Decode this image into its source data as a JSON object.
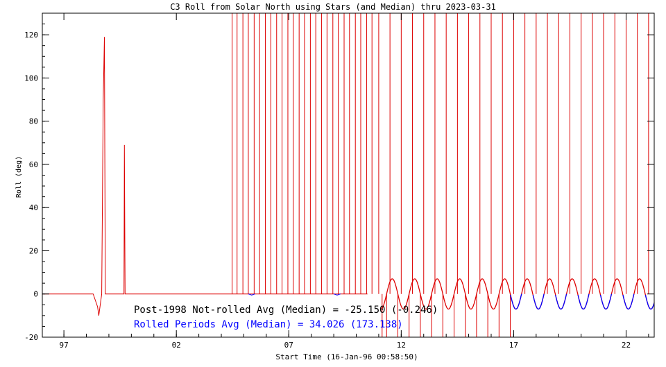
{
  "chart_data": {
    "type": "line",
    "title": "C3 Roll from Solar North using Stars (and Median) thru 2023-03-31",
    "xlabel": "Start Time (16-Jan-96 00:58:50)",
    "ylabel": "Roll (deg)",
    "xlim": [
      1996.04,
      2023.25
    ],
    "ylim": [
      -20,
      130
    ],
    "xticks": [
      {
        "value": 1997,
        "label": "97"
      },
      {
        "value": 2002,
        "label": "02"
      },
      {
        "value": 2007,
        "label": "07"
      },
      {
        "value": 2012,
        "label": "12"
      },
      {
        "value": 2017,
        "label": "17"
      },
      {
        "value": 2022,
        "label": "22"
      }
    ],
    "yticks": [
      -20,
      0,
      20,
      40,
      60,
      80,
      100,
      120
    ],
    "annotations": [
      {
        "text": "Post-1998 Not-rolled Avg (Median) = -25.150 (-0.246)",
        "color": "#000000"
      },
      {
        "text": "Rolled Periods Avg (Median) =  34.026 (173.138)",
        "color": "#0000ff"
      }
    ],
    "series": [
      {
        "color": "#dd0000",
        "segments": [
          {
            "x": [
              1996.04,
              1998.3,
              1998.5,
              1998.55,
              1998.68,
              1998.75,
              1998.8,
              1998.84,
              1999.0,
              1999.67,
              1999.69,
              1999.72,
              1999.75,
              2010.5
            ],
            "y": [
              0,
              0,
              -6,
              -10,
              0,
              90,
              119,
              0,
              0,
              0,
              69,
              0,
              0,
              0
            ]
          }
        ]
      },
      {
        "color": "#0000ff",
        "segments": [
          {
            "x": [
              2005.2,
              2005.35,
              2005.5
            ],
            "y": [
              0,
              -0.5,
              0
            ]
          },
          {
            "x": [
              2009.0,
              2009.15,
              2009.3
            ],
            "y": [
              0,
              -0.5,
              0
            ]
          }
        ]
      },
      {
        "color": "#dd0000",
        "type": "sinusoid",
        "x_start": 2011.1,
        "x_end": 2023.25,
        "period": 1.0,
        "amplitude": 7,
        "phase_peak": 2011.6
      },
      {
        "color": "#0000ff",
        "type": "sinusoid-rolled",
        "x_start": 2011.1,
        "x_end": 2023.25,
        "period": 1.0,
        "amplitude": 7,
        "phase_peak": 2011.6
      }
    ],
    "spikes": {
      "color": "#dd0000",
      "x_top": [
        2004.48,
        2004.7,
        2004.96,
        2005.2,
        2005.46,
        2005.7,
        2005.96,
        2006.2,
        2006.46,
        2006.7,
        2006.96,
        2007.2,
        2007.46,
        2007.7,
        2007.96,
        2008.2,
        2008.46,
        2008.7,
        2008.96,
        2009.2,
        2009.46,
        2009.7,
        2009.96,
        2010.2,
        2010.46,
        2010.7,
        2011.0,
        2011.5,
        2012.0,
        2012.5,
        2013.0,
        2013.5,
        2014.0,
        2014.5,
        2015.0,
        2015.5,
        2016.0,
        2016.5,
        2017.0,
        2017.5,
        2018.0,
        2018.5,
        2019.0,
        2019.5,
        2020.0,
        2020.5,
        2021.0,
        2021.5,
        2022.0,
        2022.5,
        2023.0
      ],
      "x_bottom": [
        2011.15,
        2011.35,
        2011.85,
        2012.35,
        2012.85,
        2013.35,
        2013.85,
        2014.35,
        2014.85,
        2015.35,
        2015.85,
        2016.35,
        2016.85
      ]
    }
  }
}
